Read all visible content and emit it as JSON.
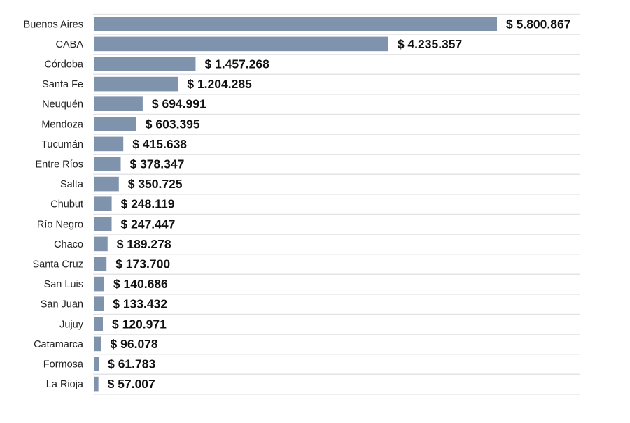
{
  "chart_data": {
    "type": "bar",
    "orientation": "horizontal",
    "categories": [
      "Buenos Aires",
      "CABA",
      "Córdoba",
      "Santa Fe",
      "Neuquén",
      "Mendoza",
      "Tucumán",
      "Entre Ríos",
      "Salta",
      "Chubut",
      "Río Negro",
      "Chaco",
      "Santa Cruz",
      "San Luis",
      "San Juan",
      "Jujuy",
      "Catamarca",
      "Formosa",
      "La Rioja"
    ],
    "values": [
      5800867,
      4235357,
      1457268,
      1204285,
      694991,
      603395,
      415638,
      378347,
      350725,
      248119,
      247447,
      189278,
      173700,
      140686,
      133432,
      120971,
      96078,
      61783,
      57007
    ],
    "data_labels": [
      "$ 5.800.867",
      "$ 4.235.357",
      "$ 1.457.268",
      "$ 1.204.285",
      "$ 694.991",
      "$ 603.395",
      "$ 415.638",
      "$ 378.347",
      "$ 350.725",
      "$ 248.119",
      "$ 247.447",
      "$ 189.278",
      "$ 173.700",
      "$ 140.686",
      "$ 133.432",
      "$ 120.971",
      "$ 96.078",
      "$ 61.783",
      "$ 57.007"
    ],
    "title": "",
    "xlabel": "",
    "ylabel": "",
    "grid": "row separators",
    "colors": {
      "bar": "#7f93ad",
      "separator": "#e2e4e8",
      "text": "#111111"
    }
  }
}
